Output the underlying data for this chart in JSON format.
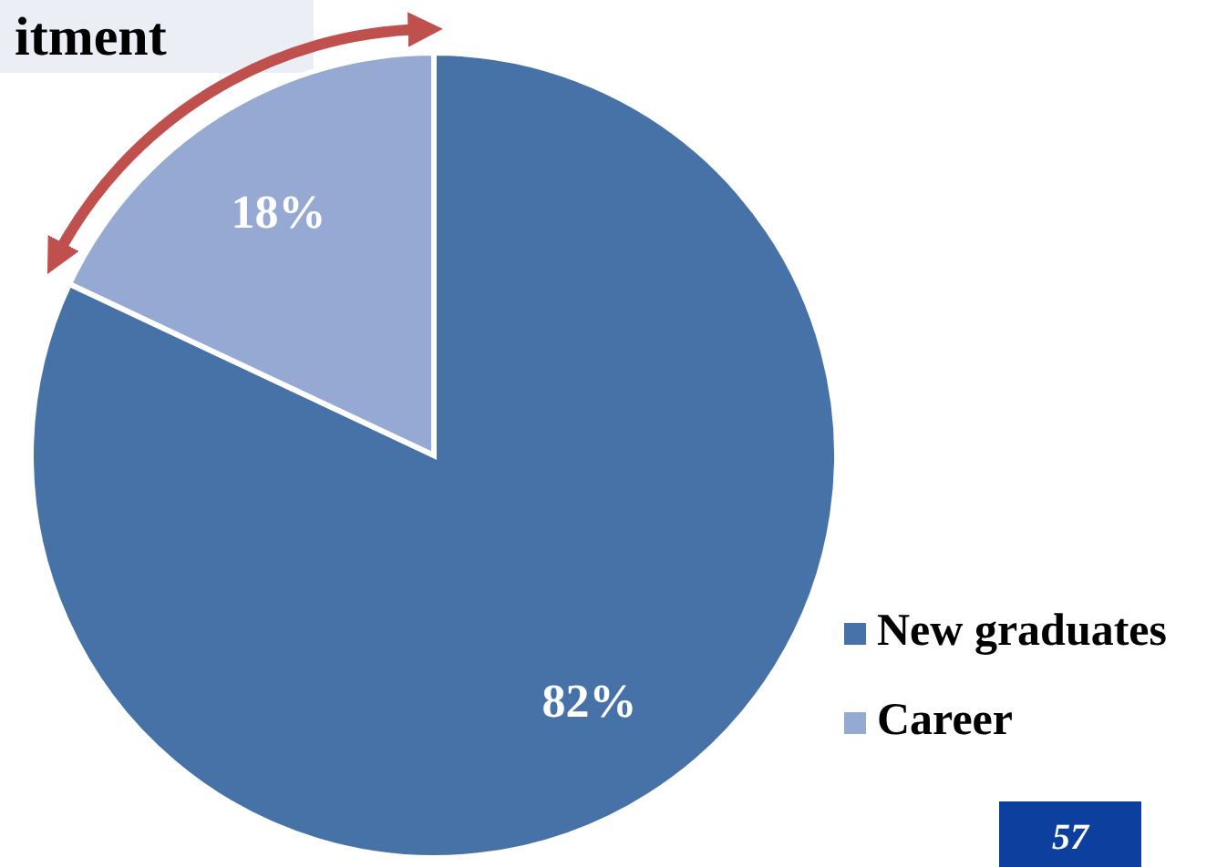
{
  "chart_data": {
    "type": "pie",
    "title": "itment",
    "categories": [
      "New graduates",
      "Career"
    ],
    "values": [
      82,
      18
    ],
    "colors": [
      "#4672a8",
      "#95a9d2"
    ],
    "value_labels": [
      "82%",
      "18%"
    ],
    "legend": "bottom right",
    "annotations": [
      "57"
    ]
  }
}
